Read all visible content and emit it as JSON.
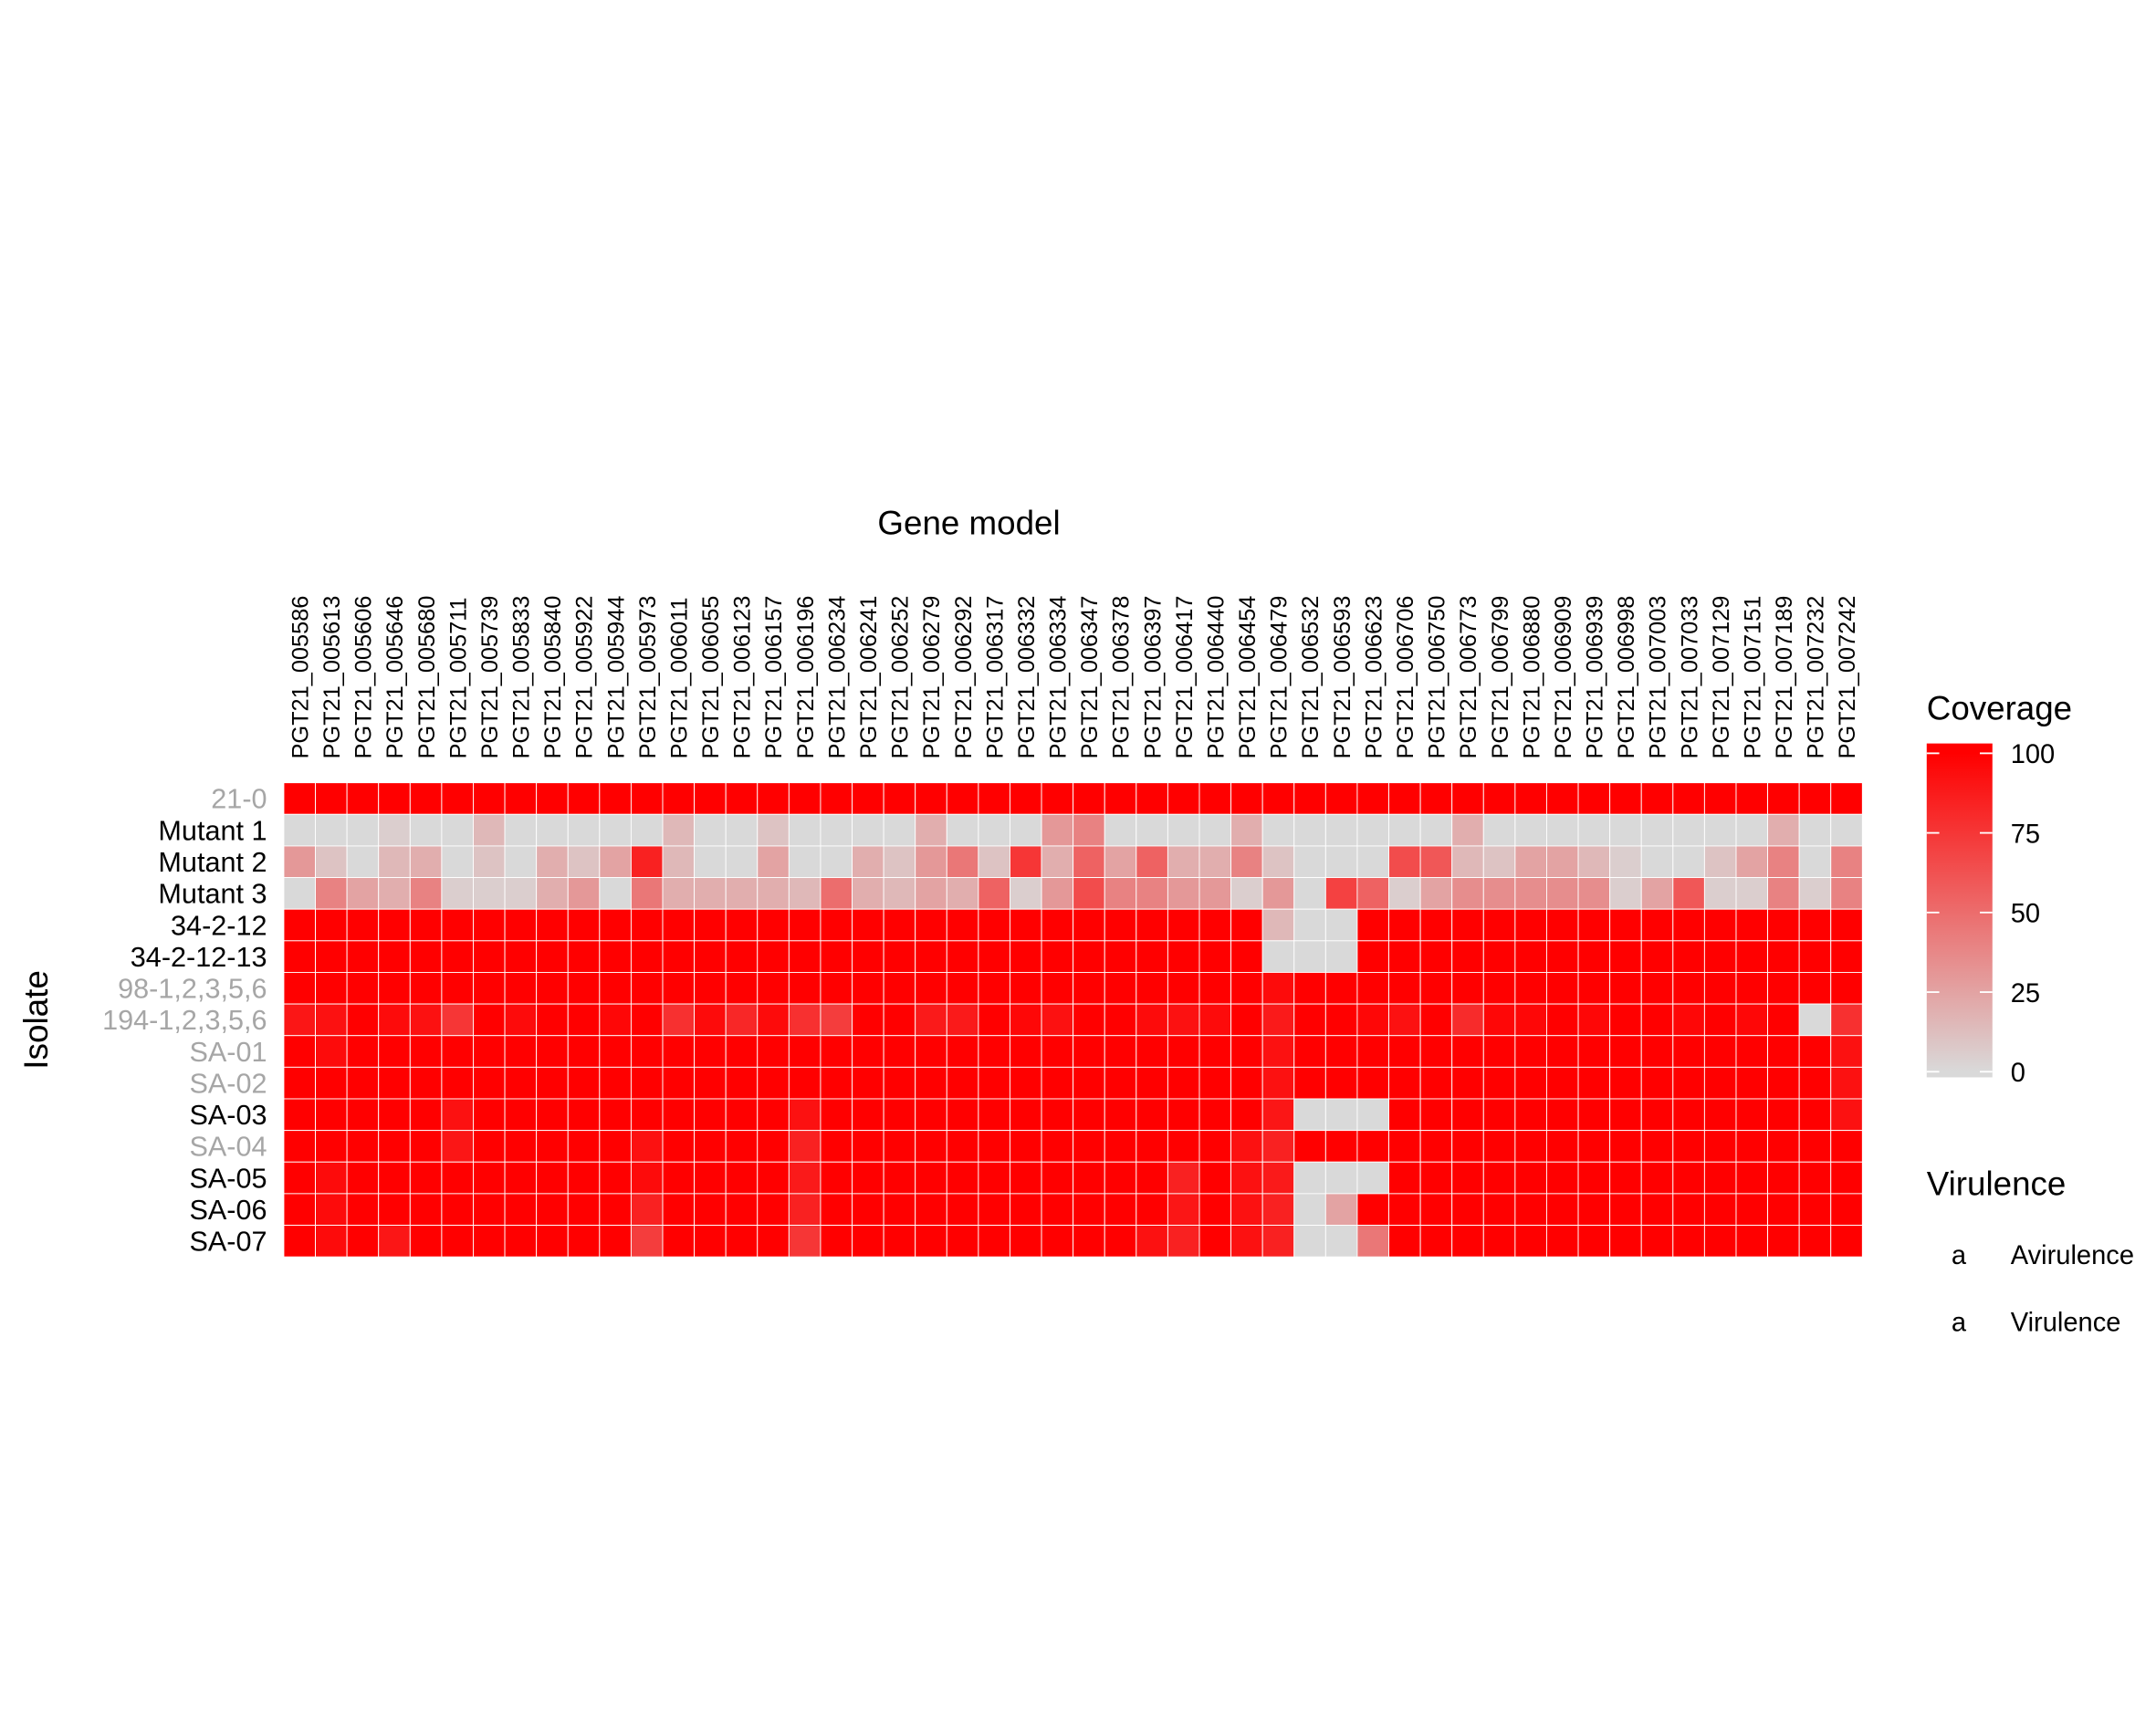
{
  "chart_data": {
    "type": "heatmap",
    "xlabel": "Gene model",
    "ylabel": "Isolate",
    "x": [
      "PGT21_005586",
      "PGT21_005613",
      "PGT21_005606",
      "PGT21_005646",
      "PGT21_005680",
      "PGT21_005711",
      "PGT21_005739",
      "PGT21_005833",
      "PGT21_005840",
      "PGT21_005922",
      "PGT21_005944",
      "PGT21_005973",
      "PGT21_006011",
      "PGT21_006055",
      "PGT21_006123",
      "PGT21_006157",
      "PGT21_006196",
      "PGT21_006234",
      "PGT21_006241",
      "PGT21_006252",
      "PGT21_006279",
      "PGT21_006292",
      "PGT21_006317",
      "PGT21_006332",
      "PGT21_006334",
      "PGT21_006347",
      "PGT21_006378",
      "PGT21_006397",
      "PGT21_006417",
      "PGT21_006440",
      "PGT21_006454",
      "PGT21_006479",
      "PGT21_006532",
      "PGT21_006593",
      "PGT21_006623",
      "PGT21_006706",
      "PGT21_006750",
      "PGT21_006773",
      "PGT21_006799",
      "PGT21_006880",
      "PGT21_006909",
      "PGT21_006939",
      "PGT21_006998",
      "PGT21_007003",
      "PGT21_007033",
      "PGT21_007129",
      "PGT21_007151",
      "PGT21_007189",
      "PGT21_007232",
      "PGT21_007242"
    ],
    "y": [
      {
        "name": "21-0",
        "virulent": false
      },
      {
        "name": "Mutant 1",
        "virulent": true
      },
      {
        "name": "Mutant 2",
        "virulent": true
      },
      {
        "name": "Mutant 3",
        "virulent": true
      },
      {
        "name": "34-2-12",
        "virulent": true
      },
      {
        "name": "34-2-12-13",
        "virulent": true
      },
      {
        "name": "98-1,2,3,5,6",
        "virulent": false
      },
      {
        "name": "194-1,2,3,5,6",
        "virulent": false
      },
      {
        "name": "SA-01",
        "virulent": false
      },
      {
        "name": "SA-02",
        "virulent": false
      },
      {
        "name": "SA-03",
        "virulent": true
      },
      {
        "name": "SA-04",
        "virulent": false
      },
      {
        "name": "SA-05",
        "virulent": true
      },
      {
        "name": "SA-06",
        "virulent": true
      },
      {
        "name": "SA-07",
        "virulent": true
      }
    ],
    "values": [
      [
        100,
        100,
        100,
        100,
        100,
        100,
        100,
        100,
        100,
        100,
        100,
        100,
        100,
        100,
        100,
        100,
        100,
        100,
        100,
        100,
        100,
        100,
        100,
        100,
        100,
        100,
        100,
        100,
        100,
        100,
        100,
        100,
        100,
        100,
        100,
        100,
        100,
        100,
        100,
        100,
        100,
        100,
        100,
        100,
        100,
        100,
        100,
        100,
        100,
        100
      ],
      [
        0,
        0,
        0,
        5,
        0,
        0,
        15,
        0,
        0,
        0,
        0,
        0,
        15,
        0,
        0,
        10,
        0,
        0,
        0,
        0,
        20,
        0,
        0,
        0,
        30,
        40,
        0,
        0,
        0,
        0,
        20,
        0,
        0,
        0,
        0,
        0,
        0,
        20,
        0,
        0,
        0,
        0,
        0,
        0,
        0,
        0,
        0,
        20,
        0,
        0
      ],
      [
        30,
        10,
        0,
        15,
        20,
        0,
        10,
        0,
        20,
        10,
        25,
        85,
        15,
        0,
        0,
        25,
        0,
        0,
        20,
        10,
        30,
        45,
        10,
        75,
        20,
        55,
        25,
        55,
        20,
        20,
        40,
        10,
        0,
        0,
        0,
        65,
        60,
        15,
        10,
        25,
        25,
        15,
        5,
        0,
        0,
        10,
        25,
        40,
        0,
        40
      ],
      [
        0,
        40,
        25,
        20,
        40,
        5,
        5,
        5,
        20,
        30,
        0,
        45,
        20,
        20,
        20,
        20,
        15,
        50,
        20,
        15,
        25,
        20,
        55,
        5,
        30,
        65,
        40,
        40,
        30,
        30,
        5,
        30,
        0,
        70,
        55,
        5,
        25,
        35,
        35,
        35,
        35,
        35,
        5,
        25,
        60,
        5,
        5,
        40,
        5,
        40
      ],
      [
        100,
        100,
        100,
        100,
        100,
        100,
        100,
        100,
        100,
        100,
        100,
        100,
        100,
        100,
        100,
        100,
        100,
        100,
        100,
        100,
        100,
        100,
        100,
        100,
        100,
        100,
        100,
        100,
        100,
        100,
        100,
        15,
        0,
        0,
        100,
        100,
        100,
        100,
        100,
        100,
        100,
        100,
        100,
        100,
        100,
        100,
        100,
        100,
        100,
        100
      ],
      [
        100,
        100,
        100,
        100,
        100,
        100,
        100,
        100,
        100,
        100,
        100,
        100,
        100,
        100,
        100,
        100,
        100,
        100,
        100,
        100,
        100,
        100,
        100,
        100,
        100,
        100,
        100,
        100,
        100,
        100,
        100,
        0,
        0,
        0,
        100,
        100,
        100,
        100,
        100,
        100,
        100,
        100,
        100,
        100,
        100,
        100,
        100,
        100,
        100,
        100
      ],
      [
        100,
        100,
        100,
        100,
        100,
        100,
        100,
        100,
        100,
        100,
        100,
        100,
        100,
        100,
        100,
        100,
        100,
        100,
        100,
        100,
        100,
        100,
        100,
        100,
        100,
        100,
        100,
        100,
        100,
        100,
        100,
        95,
        100,
        100,
        100,
        100,
        100,
        100,
        100,
        100,
        100,
        100,
        100,
        100,
        100,
        100,
        100,
        100,
        100,
        100
      ],
      [
        90,
        92,
        100,
        95,
        92,
        75,
        100,
        95,
        100,
        100,
        97,
        100,
        78,
        95,
        82,
        95,
        78,
        72,
        100,
        100,
        88,
        88,
        100,
        97,
        92,
        100,
        100,
        95,
        92,
        95,
        100,
        88,
        100,
        100,
        97,
        92,
        100,
        80,
        97,
        97,
        100,
        97,
        100,
        100,
        97,
        100,
        97,
        100,
        0,
        78
      ],
      [
        100,
        95,
        100,
        100,
        100,
        100,
        100,
        100,
        100,
        100,
        100,
        100,
        100,
        100,
        100,
        100,
        100,
        100,
        100,
        100,
        100,
        100,
        100,
        100,
        100,
        100,
        100,
        100,
        100,
        100,
        100,
        92,
        100,
        100,
        100,
        100,
        100,
        100,
        100,
        100,
        100,
        100,
        100,
        100,
        100,
        100,
        100,
        100,
        100,
        92
      ],
      [
        100,
        100,
        100,
        100,
        100,
        100,
        100,
        100,
        100,
        100,
        100,
        100,
        100,
        100,
        100,
        100,
        100,
        100,
        100,
        100,
        100,
        100,
        100,
        100,
        100,
        100,
        100,
        100,
        100,
        100,
        100,
        92,
        100,
        100,
        100,
        100,
        100,
        100,
        100,
        100,
        100,
        100,
        100,
        100,
        100,
        100,
        100,
        100,
        100,
        92
      ],
      [
        100,
        100,
        100,
        100,
        100,
        92,
        100,
        100,
        100,
        100,
        100,
        100,
        100,
        100,
        100,
        100,
        92,
        100,
        100,
        100,
        100,
        100,
        100,
        100,
        100,
        100,
        100,
        100,
        100,
        100,
        100,
        90,
        0,
        0,
        0,
        100,
        100,
        100,
        100,
        100,
        100,
        100,
        100,
        100,
        100,
        100,
        100,
        100,
        100,
        92
      ],
      [
        100,
        100,
        100,
        100,
        100,
        90,
        100,
        100,
        100,
        100,
        100,
        92,
        100,
        100,
        100,
        100,
        85,
        100,
        100,
        100,
        100,
        100,
        100,
        100,
        100,
        100,
        100,
        100,
        100,
        100,
        92,
        85,
        100,
        100,
        100,
        100,
        100,
        100,
        100,
        100,
        100,
        100,
        100,
        100,
        100,
        100,
        100,
        100,
        100,
        100
      ],
      [
        100,
        95,
        100,
        100,
        100,
        100,
        100,
        100,
        100,
        100,
        100,
        95,
        100,
        100,
        100,
        100,
        88,
        100,
        100,
        100,
        100,
        100,
        100,
        100,
        100,
        100,
        100,
        100,
        85,
        100,
        92,
        88,
        0,
        0,
        0,
        100,
        100,
        100,
        100,
        100,
        100,
        100,
        100,
        100,
        100,
        100,
        100,
        100,
        100,
        100
      ],
      [
        100,
        95,
        100,
        100,
        100,
        100,
        100,
        100,
        100,
        100,
        100,
        85,
        100,
        100,
        100,
        100,
        85,
        100,
        100,
        100,
        100,
        100,
        100,
        100,
        100,
        100,
        100,
        100,
        90,
        100,
        92,
        85,
        0,
        25,
        100,
        100,
        100,
        100,
        100,
        100,
        100,
        100,
        100,
        100,
        100,
        100,
        100,
        100,
        100,
        100
      ],
      [
        100,
        95,
        100,
        90,
        100,
        100,
        100,
        100,
        100,
        100,
        100,
        72,
        100,
        100,
        100,
        100,
        75,
        100,
        100,
        100,
        100,
        100,
        100,
        100,
        100,
        100,
        100,
        92,
        85,
        100,
        92,
        85,
        0,
        0,
        45,
        100,
        100,
        100,
        100,
        100,
        100,
        100,
        100,
        100,
        100,
        100,
        100,
        100,
        100,
        100
      ]
    ],
    "color_scale": {
      "low": "#d9d9d9",
      "high": "#ff0000",
      "min": 0,
      "max": 100
    },
    "grid": false,
    "legend_placement": "right"
  },
  "legend": {
    "coverage": {
      "title": "Coverage",
      "ticks": [
        "100",
        "75",
        "50",
        "25",
        "0"
      ],
      "tick_values": [
        100,
        75,
        50,
        25,
        0
      ]
    },
    "virulence": {
      "title": "Virulence",
      "entries": [
        {
          "glyph": "a",
          "label": "Avirulence",
          "color": "#a6a6a6"
        },
        {
          "glyph": "a",
          "label": "Virulence",
          "color": "#000000"
        }
      ]
    }
  },
  "colors": {
    "avirulent_label": "#a6a6a6",
    "virulent_label": "#000000",
    "cell_border": "#ffffff"
  }
}
